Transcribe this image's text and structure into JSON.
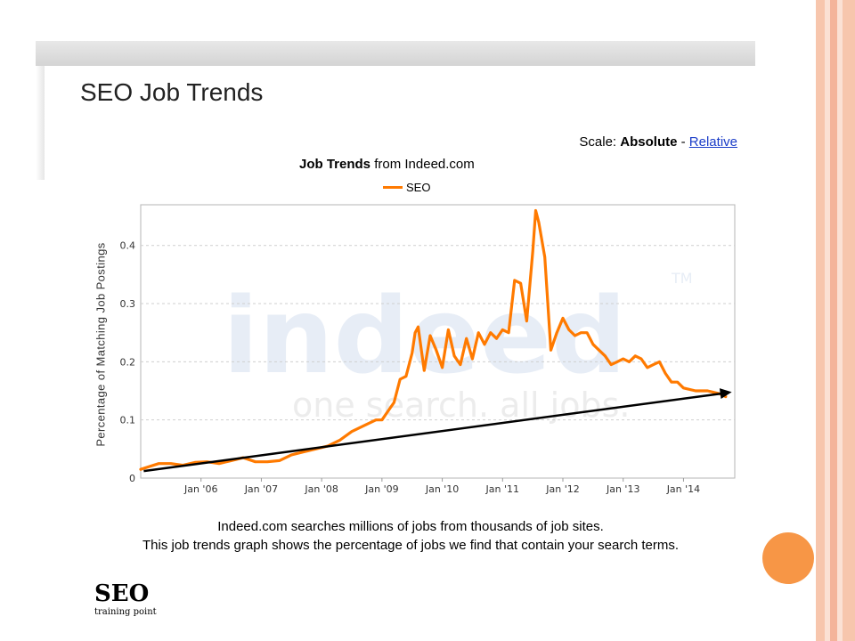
{
  "page": {
    "heading": "SEO Job Trends",
    "scale": {
      "label": "Scale:",
      "absolute": "Absolute",
      "separator": "-",
      "relative": "Relative"
    },
    "footer_line1": "Indeed.com searches millions of jobs from thousands of job sites.",
    "footer_line2": "This job trends graph shows the percentage of jobs we find that contain your search terms.",
    "logo_text": "SEO",
    "logo_sub": "training point",
    "watermark_main": "indeed",
    "watermark_tm": "TM",
    "watermark_tagline": "one search. all jobs.",
    "colors": {
      "accent": "#f79646",
      "series": "#ff7a00",
      "link": "#1a3cc8"
    }
  },
  "chart_data": {
    "type": "line",
    "title_bold": "Job Trends",
    "title_rest": "from Indeed.com",
    "ylabel": "Percentage of Matching Job Postings",
    "xlabel": "",
    "ylim": [
      0,
      0.47
    ],
    "yticks": [
      "0",
      "0.1",
      "0.2",
      "0.3",
      "0.4"
    ],
    "ytick_values": [
      0,
      0.1,
      0.2,
      0.3,
      0.4
    ],
    "xlim": [
      2005.0,
      2014.85
    ],
    "xticks": [
      "Jan '06",
      "Jan '07",
      "Jan '08",
      "Jan '09",
      "Jan '10",
      "Jan '11",
      "Jan '12",
      "Jan '13",
      "Jan '14"
    ],
    "xtick_values": [
      2006,
      2007,
      2008,
      2009,
      2010,
      2011,
      2012,
      2013,
      2014
    ],
    "grid": true,
    "legend": "top-center",
    "series": [
      {
        "name": "SEO",
        "x": [
          2005.0,
          2005.15,
          2005.3,
          2005.5,
          2005.7,
          2005.9,
          2006.1,
          2006.3,
          2006.5,
          2006.7,
          2006.9,
          2007.1,
          2007.3,
          2007.5,
          2007.7,
          2007.9,
          2008.1,
          2008.3,
          2008.5,
          2008.7,
          2008.9,
          2009.0,
          2009.1,
          2009.2,
          2009.3,
          2009.4,
          2009.5,
          2009.55,
          2009.6,
          2009.7,
          2009.8,
          2009.9,
          2010.0,
          2010.1,
          2010.2,
          2010.3,
          2010.4,
          2010.5,
          2010.6,
          2010.7,
          2010.8,
          2010.9,
          2011.0,
          2011.1,
          2011.2,
          2011.3,
          2011.4,
          2011.5,
          2011.55,
          2011.6,
          2011.7,
          2011.8,
          2011.9,
          2012.0,
          2012.1,
          2012.2,
          2012.3,
          2012.4,
          2012.5,
          2012.6,
          2012.7,
          2012.8,
          2012.9,
          2013.0,
          2013.1,
          2013.2,
          2013.3,
          2013.4,
          2013.5,
          2013.6,
          2013.7,
          2013.8,
          2013.9,
          2014.0,
          2014.2,
          2014.4,
          2014.6,
          2014.7
        ],
        "y": [
          0.015,
          0.02,
          0.025,
          0.025,
          0.022,
          0.027,
          0.028,
          0.025,
          0.03,
          0.035,
          0.028,
          0.028,
          0.03,
          0.04,
          0.045,
          0.05,
          0.055,
          0.065,
          0.08,
          0.09,
          0.1,
          0.1,
          0.115,
          0.13,
          0.17,
          0.175,
          0.215,
          0.25,
          0.26,
          0.185,
          0.245,
          0.22,
          0.19,
          0.255,
          0.21,
          0.195,
          0.24,
          0.205,
          0.25,
          0.23,
          0.25,
          0.24,
          0.255,
          0.25,
          0.34,
          0.335,
          0.27,
          0.39,
          0.46,
          0.44,
          0.38,
          0.22,
          0.25,
          0.275,
          0.255,
          0.245,
          0.25,
          0.25,
          0.23,
          0.22,
          0.21,
          0.195,
          0.2,
          0.205,
          0.2,
          0.21,
          0.205,
          0.19,
          0.195,
          0.2,
          0.18,
          0.165,
          0.165,
          0.155,
          0.15,
          0.15,
          0.145,
          0.14
        ]
      }
    ],
    "annotation": {
      "type": "trend-arrow",
      "x": [
        2005.05,
        2014.8
      ],
      "y": [
        0.012,
        0.148
      ]
    }
  }
}
